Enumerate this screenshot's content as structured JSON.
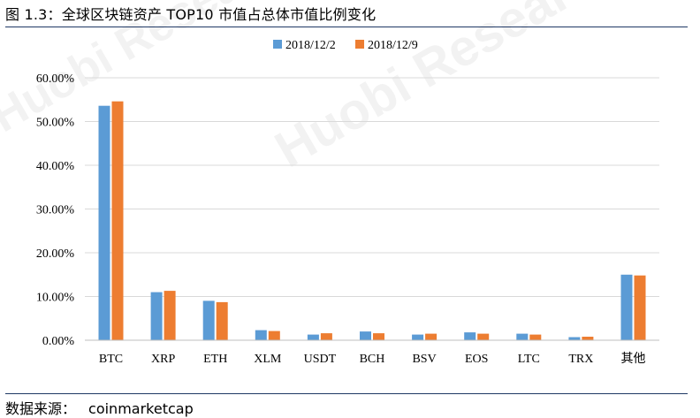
{
  "title": "图 1.3：全球区块链资产 TOP10 市值占总体市值比例变化",
  "source_label": "数据来源：",
  "source_value": "coinmarketcap",
  "watermark": "Huobi Research",
  "colors": {
    "series1": "#5b9bd5",
    "series2": "#ed7d31",
    "grid": "#d9d9d9",
    "axis": "#bfbfbf",
    "rule": "#1f3864"
  },
  "chart_data": {
    "type": "bar",
    "title": "",
    "xlabel": "",
    "ylabel": "",
    "legend_position": "top",
    "grid": true,
    "ylim": [
      0,
      0.6
    ],
    "y_ticks": [
      "0.00%",
      "10.00%",
      "20.00%",
      "30.00%",
      "40.00%",
      "50.00%",
      "60.00%"
    ],
    "y_tick_values": [
      0,
      0.1,
      0.2,
      0.3,
      0.4,
      0.5,
      0.6
    ],
    "categories": [
      "BTC",
      "XRP",
      "ETH",
      "XLM",
      "USDT",
      "BCH",
      "BSV",
      "EOS",
      "LTC",
      "TRX",
      "其他"
    ],
    "series": [
      {
        "name": "2018/12/2",
        "color": "#5b9bd5",
        "values": [
          0.536,
          0.11,
          0.09,
          0.023,
          0.013,
          0.02,
          0.013,
          0.018,
          0.015,
          0.007,
          0.15
        ]
      },
      {
        "name": "2018/12/9",
        "color": "#ed7d31",
        "values": [
          0.546,
          0.113,
          0.087,
          0.021,
          0.016,
          0.016,
          0.015,
          0.015,
          0.013,
          0.008,
          0.148
        ]
      }
    ]
  }
}
